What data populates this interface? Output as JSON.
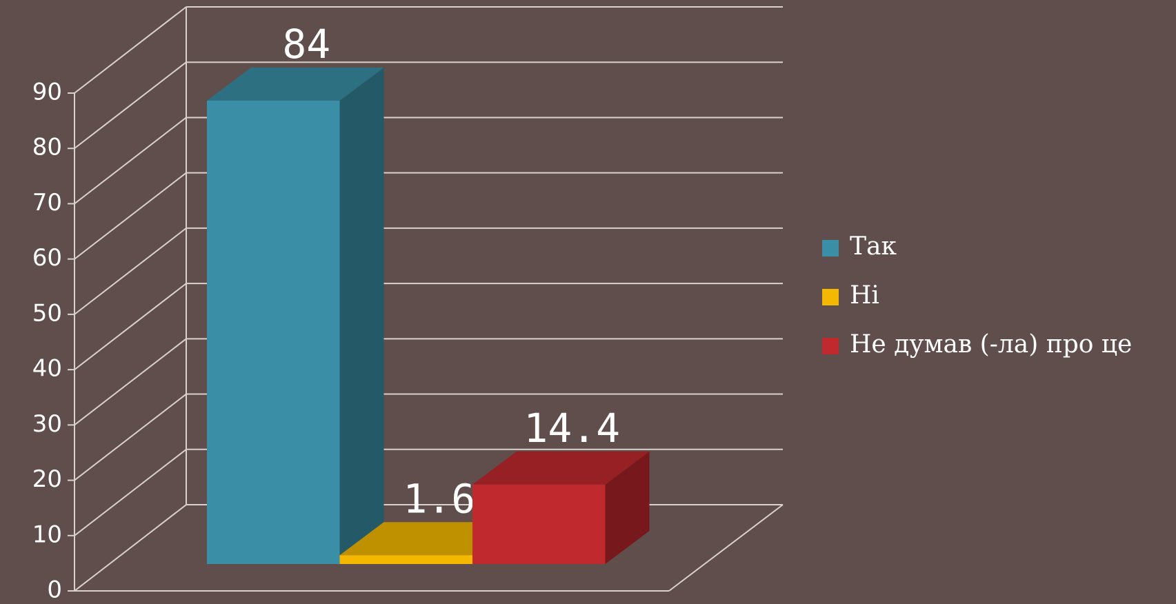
{
  "chart_data": {
    "type": "bar3d",
    "categories": [
      null
    ],
    "series": [
      {
        "name": "Так",
        "color": "#3a8fa6",
        "values": [
          84
        ]
      },
      {
        "name": "Ні",
        "color": "#f5b800",
        "values": [
          1.6
        ]
      },
      {
        "name": "Не думав (-ла) про це",
        "color": "#c0292d",
        "values": [
          14.4
        ]
      }
    ],
    "ylim": [
      0,
      90
    ],
    "yticks": [
      0,
      10,
      20,
      30,
      40,
      50,
      60,
      70,
      80,
      90
    ],
    "grid": true,
    "legend": "right"
  }
}
